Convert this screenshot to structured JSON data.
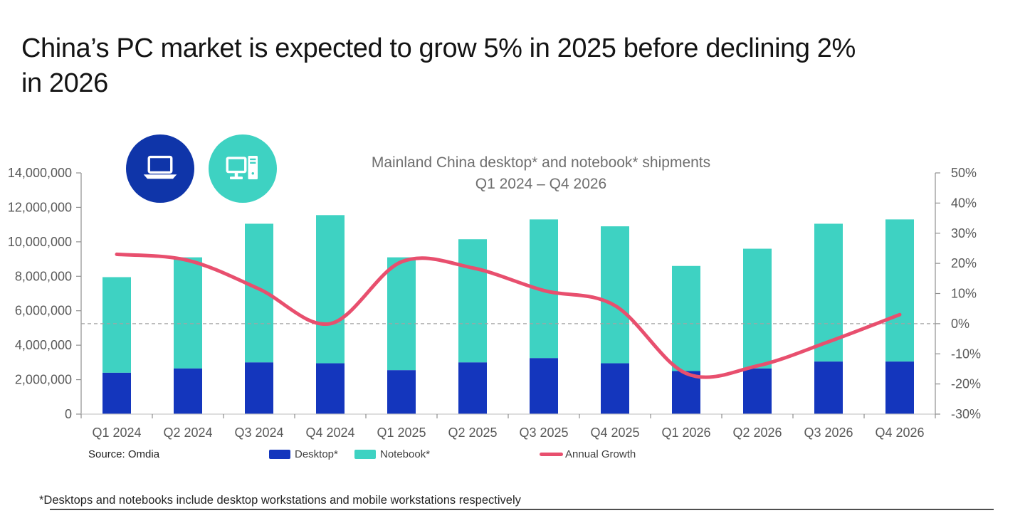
{
  "header": {
    "title_line1": "China’s PC market is expected to grow 5% in 2025 before declining 2%",
    "title_line2": "in 2026"
  },
  "icons": {
    "laptop_badge": {
      "name": "laptop-icon",
      "circle_color": "#0f35a9"
    },
    "desktop_badge": {
      "name": "desktop-pc-icon",
      "circle_color": "#3ed2c2"
    }
  },
  "chart_data": {
    "type": "combo-bar-line",
    "title_line1": "Mainland China desktop* and notebook* shipments",
    "title_line2": "Q1 2024 – Q4 2026",
    "categories": [
      "Q1 2024",
      "Q2 2024",
      "Q3 2024",
      "Q4 2024",
      "Q1 2025",
      "Q2 2025",
      "Q3 2025",
      "Q4 2025",
      "Q1 2026",
      "Q2 2026",
      "Q3 2026",
      "Q4 2026"
    ],
    "series": [
      {
        "name": "Desktop*",
        "type": "bar",
        "stacked": true,
        "color": "#1436bd",
        "values": [
          2400000,
          2650000,
          3000000,
          2950000,
          2550000,
          3000000,
          3250000,
          2950000,
          2500000,
          2650000,
          3050000,
          3050000
        ]
      },
      {
        "name": "Notebook*",
        "type": "bar",
        "stacked": true,
        "color": "#3ed2c2",
        "values": [
          5550000,
          6450000,
          8050000,
          8600000,
          6550000,
          7150000,
          8050000,
          7950000,
          6100000,
          6950000,
          8000000,
          8250000
        ]
      },
      {
        "name": "Annual Growth",
        "type": "line",
        "axis": "right",
        "color": "#e84f6e",
        "values_pct": [
          23,
          21,
          11.5,
          0,
          20.5,
          18.5,
          11,
          6,
          -16.5,
          -14,
          -6,
          3
        ]
      }
    ],
    "left_axis": {
      "min": 0,
      "max": 14000000,
      "tick_labels": [
        "14,000,000",
        "12,000,000",
        "10,000,000",
        "8,000,000",
        "6,000,000",
        "4,000,000",
        "2,000,000",
        "0"
      ]
    },
    "right_axis": {
      "min": -30,
      "max": 50,
      "tick_labels": [
        "50%",
        "40%",
        "30%",
        "20%",
        "10%",
        "0%",
        "-10%",
        "-20%",
        "-30%"
      ],
      "zero_reference_line": "dashed"
    },
    "legend_position": "bottom",
    "grid": "off"
  },
  "footer": {
    "source": "Source: Omdia",
    "footnote": "*Desktops and notebooks include desktop workstations and mobile workstations respectively"
  }
}
